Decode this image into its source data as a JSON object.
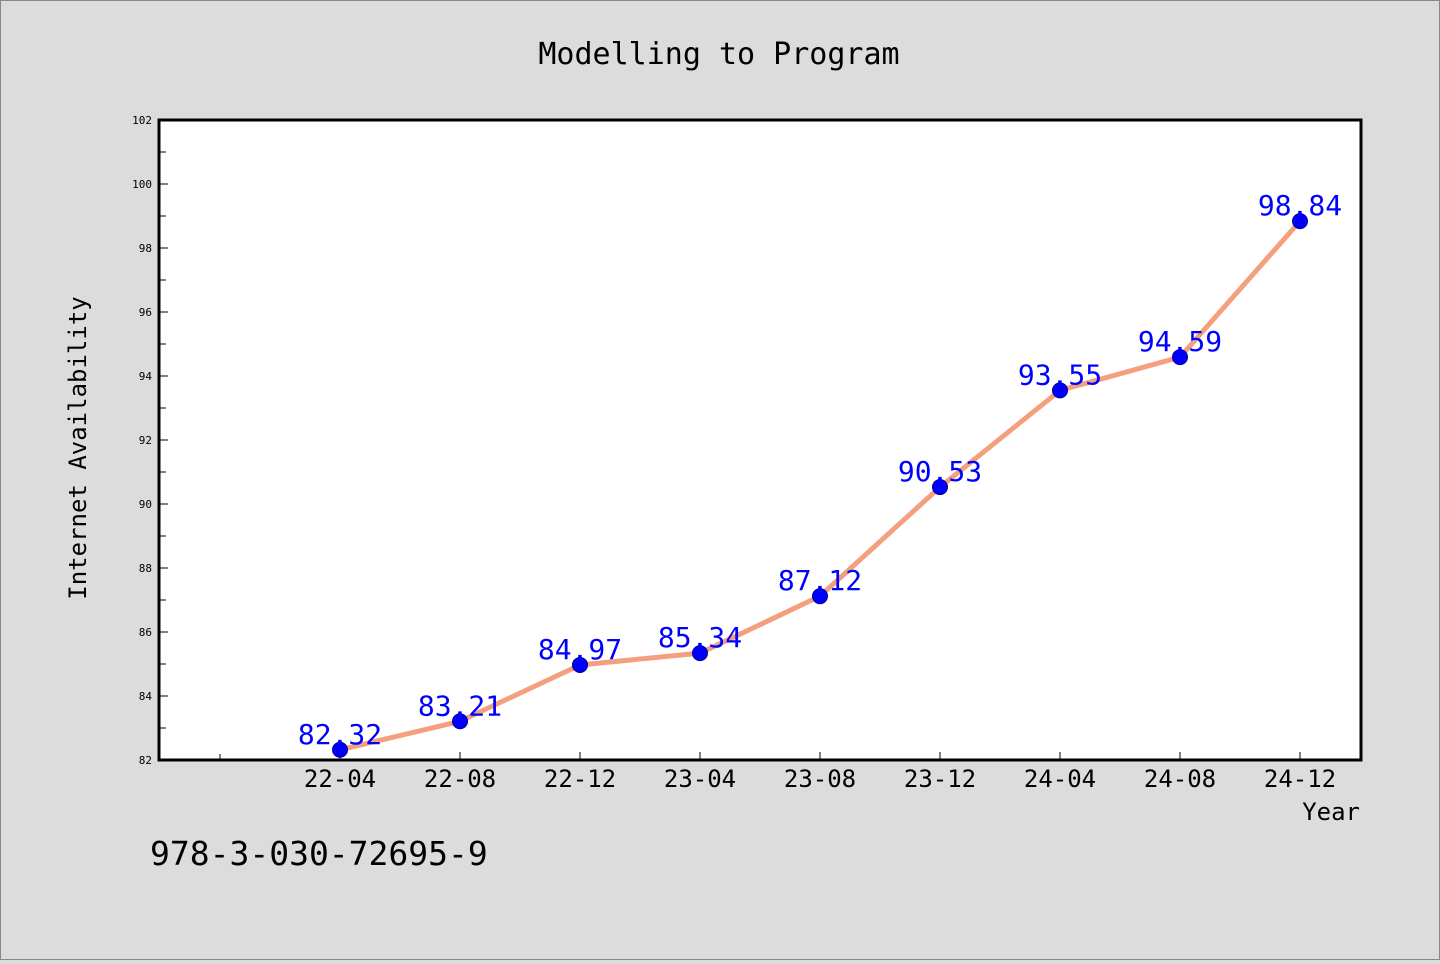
{
  "colors": {
    "background": "#dcdcdc",
    "plot_background": "#ffffff",
    "line": "#f4a07f",
    "marker": "#0000ff",
    "data_label": "#0000ff",
    "text": "#000000"
  },
  "footer_text": "978-3-030-72695-9",
  "chart_data": {
    "type": "line",
    "title": "Modelling to Program",
    "xlabel": "Year",
    "ylabel": "Internet Availability",
    "categories": [
      "22-04",
      "22-08",
      "22-12",
      "23-04",
      "23-08",
      "23-12",
      "24-04",
      "24-08",
      "24-12"
    ],
    "series": [
      {
        "values": [
          82.32,
          83.21,
          84.97,
          85.34,
          87.12,
          90.53,
          93.55,
          94.59,
          98.84
        ]
      }
    ],
    "data_labels": [
      "82.32",
      "83.21",
      "84.97",
      "85.34",
      "87.12",
      "90.53",
      "93.55",
      "94.59",
      "98.84"
    ],
    "ylim": [
      82,
      102
    ],
    "yticks": [
      82,
      84,
      86,
      88,
      90,
      92,
      94,
      96,
      98,
      100,
      102
    ],
    "grid": false,
    "legend": "none"
  }
}
